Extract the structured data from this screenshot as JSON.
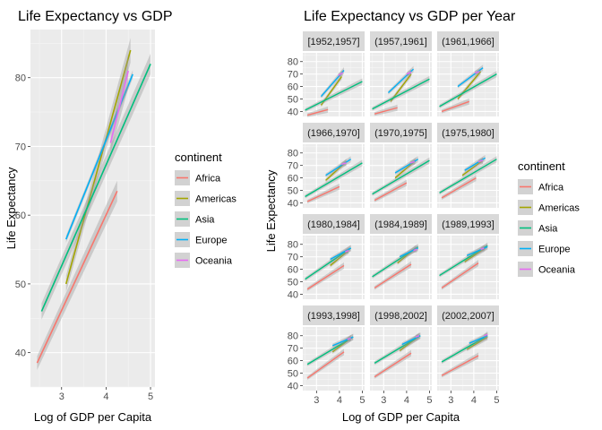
{
  "chart_data": [
    {
      "type": "line",
      "title": "Life Expectancy vs GDP",
      "xlabel": "Log of GDP per Capita",
      "ylabel": "Life Expectancy",
      "xlim": [
        2.3,
        5.1
      ],
      "ylim": [
        35,
        87
      ],
      "xticks": [
        "3",
        "4",
        "5"
      ],
      "yticks": [
        "40",
        "50",
        "60",
        "70",
        "80"
      ],
      "grid": true,
      "series": [
        {
          "name": "Africa",
          "x": [
            2.45,
            4.25
          ],
          "y": [
            38.5,
            63.5
          ],
          "ci": [
            1.0,
            1.5
          ]
        },
        {
          "name": "Americas",
          "x": [
            3.1,
            4.55
          ],
          "y": [
            50,
            84
          ],
          "ci": [
            1.2,
            1.8
          ]
        },
        {
          "name": "Asia",
          "x": [
            2.55,
            5.0
          ],
          "y": [
            46,
            82
          ],
          "ci": [
            1.2,
            1.5
          ]
        },
        {
          "name": "Europe",
          "x": [
            3.1,
            4.6
          ],
          "y": [
            56.5,
            80.5
          ],
          "ci": [
            0.5,
            0.6
          ]
        },
        {
          "name": "Oceania",
          "x": [
            4.1,
            4.5
          ],
          "y": [
            70.5,
            81
          ],
          "ci": [
            1.5,
            2.5
          ]
        }
      ],
      "legend": {
        "title": "continent",
        "position": "right"
      }
    },
    {
      "type": "line",
      "title": "Life Expectancy vs GDP per Year",
      "xlabel": "Log of GDP per Capita",
      "ylabel": "Life Expectancy",
      "xlim": [
        2.4,
        5.1
      ],
      "ylim": [
        36,
        87
      ],
      "xticks": [
        "3",
        "4",
        "5"
      ],
      "facets": [
        {
          "label": "[1952,1957]",
          "yticks": [
            "40",
            "50",
            "60",
            "70",
            "80"
          ],
          "series": {
            "Africa": [
              [
                2.6,
                37
              ],
              [
                3.5,
                41.5
              ]
            ],
            "Americas": [
              [
                3.2,
                45
              ],
              [
                4.1,
                68
              ]
            ],
            "Asia": [
              [
                2.5,
                41
              ],
              [
                5.0,
                64
              ]
            ],
            "Europe": [
              [
                3.2,
                52
              ],
              [
                4.2,
                73
              ]
            ],
            "Oceania": [
              [
                3.95,
                69
              ],
              [
                4.15,
                71
              ]
            ]
          }
        },
        {
          "label": "(1957,1961]",
          "yticks": [
            "40",
            "50",
            "60",
            "70",
            "80"
          ],
          "series": {
            "Africa": [
              [
                2.6,
                38
              ],
              [
                3.6,
                43
              ]
            ],
            "Americas": [
              [
                3.3,
                48
              ],
              [
                4.2,
                70
              ]
            ],
            "Asia": [
              [
                2.5,
                42
              ],
              [
                5.0,
                66
              ]
            ],
            "Europe": [
              [
                3.2,
                55
              ],
              [
                4.3,
                74
              ]
            ],
            "Oceania": [
              [
                4.0,
                70
              ],
              [
                4.2,
                71.5
              ]
            ]
          }
        },
        {
          "label": "(1961,1966]",
          "yticks": [
            "40",
            "50",
            "60",
            "70",
            "80"
          ],
          "series": {
            "Africa": [
              [
                2.6,
                40
              ],
              [
                3.8,
                48
              ]
            ],
            "Americas": [
              [
                3.3,
                50
              ],
              [
                4.3,
                72
              ]
            ],
            "Asia": [
              [
                2.5,
                44
              ],
              [
                5.0,
                70
              ]
            ],
            "Europe": [
              [
                3.3,
                60
              ],
              [
                4.4,
                75
              ]
            ],
            "Oceania": [
              [
                4.05,
                71
              ],
              [
                4.25,
                72
              ]
            ]
          }
        },
        {
          "label": "(1966,1970]",
          "yticks": [
            "40",
            "50",
            "60",
            "70",
            "80"
          ],
          "series": {
            "Africa": [
              [
                2.6,
                41
              ],
              [
                4.0,
                53
              ]
            ],
            "Americas": [
              [
                3.4,
                58
              ],
              [
                4.3,
                73
              ]
            ],
            "Asia": [
              [
                2.5,
                45
              ],
              [
                5.0,
                72
              ]
            ],
            "Europe": [
              [
                3.4,
                62
              ],
              [
                4.5,
                75
              ]
            ],
            "Oceania": [
              [
                4.1,
                71
              ],
              [
                4.3,
                72
              ]
            ]
          }
        },
        {
          "label": "(1970,1975]",
          "yticks": [
            "40",
            "50",
            "60",
            "70",
            "80"
          ],
          "series": {
            "Africa": [
              [
                2.6,
                42
              ],
              [
                4.0,
                56
              ]
            ],
            "Americas": [
              [
                3.5,
                60
              ],
              [
                4.4,
                74
              ]
            ],
            "Asia": [
              [
                2.5,
                47
              ],
              [
                5.0,
                74
              ]
            ],
            "Europe": [
              [
                3.5,
                64
              ],
              [
                4.5,
                75
              ]
            ],
            "Oceania": [
              [
                4.15,
                72
              ],
              [
                4.35,
                73
              ]
            ]
          }
        },
        {
          "label": "(1975,1980]",
          "yticks": [
            "40",
            "50",
            "60",
            "70",
            "80"
          ],
          "series": {
            "Africa": [
              [
                2.6,
                44
              ],
              [
                4.1,
                60
              ]
            ],
            "Americas": [
              [
                3.5,
                62
              ],
              [
                4.4,
                74
              ]
            ],
            "Asia": [
              [
                2.5,
                48
              ],
              [
                5.0,
                75
              ]
            ],
            "Europe": [
              [
                3.6,
                66
              ],
              [
                4.5,
                76
              ]
            ],
            "Oceania": [
              [
                4.2,
                73
              ],
              [
                4.4,
                74
              ]
            ]
          }
        },
        {
          "label": "(1980,1984]",
          "yticks": [
            "40",
            "50",
            "60",
            "70",
            "80"
          ],
          "series": {
            "Africa": [
              [
                2.6,
                44
              ],
              [
                4.2,
                63
              ]
            ],
            "Americas": [
              [
                3.6,
                63
              ],
              [
                4.4,
                75
              ]
            ],
            "Asia": [
              [
                2.5,
                52
              ],
              [
                4.5,
                77
              ]
            ],
            "Europe": [
              [
                3.6,
                68
              ],
              [
                4.5,
                77
              ]
            ],
            "Oceania": [
              [
                4.25,
                74
              ],
              [
                4.4,
                75
              ]
            ]
          }
        },
        {
          "label": "(1984,1989]",
          "yticks": [
            "40",
            "50",
            "60",
            "70",
            "80"
          ],
          "series": {
            "Africa": [
              [
                2.6,
                45
              ],
              [
                4.2,
                64
              ]
            ],
            "Americas": [
              [
                3.6,
                65
              ],
              [
                4.4,
                77
              ]
            ],
            "Asia": [
              [
                2.5,
                54
              ],
              [
                4.5,
                78
              ]
            ],
            "Europe": [
              [
                3.7,
                70
              ],
              [
                4.5,
                77
              ]
            ],
            "Oceania": [
              [
                4.3,
                75
              ],
              [
                4.45,
                76
              ]
            ]
          }
        },
        {
          "label": "(1989,1993]",
          "yticks": [
            "40",
            "50",
            "60",
            "70",
            "80"
          ],
          "series": {
            "Africa": [
              [
                2.6,
                45
              ],
              [
                4.2,
                65
              ]
            ],
            "Americas": [
              [
                3.6,
                66
              ],
              [
                4.5,
                77
              ]
            ],
            "Asia": [
              [
                2.5,
                55
              ],
              [
                4.6,
                79
              ]
            ],
            "Europe": [
              [
                3.7,
                71
              ],
              [
                4.6,
                78
              ]
            ],
            "Oceania": [
              [
                4.3,
                76
              ],
              [
                4.45,
                77
              ]
            ]
          }
        },
        {
          "label": "(1993,1998]",
          "yticks": [
            "40",
            "50",
            "60",
            "70",
            "80"
          ],
          "series": {
            "Africa": [
              [
                2.6,
                46
              ],
              [
                4.2,
                67
              ]
            ],
            "Americas": [
              [
                3.7,
                67
              ],
              [
                4.5,
                78
              ]
            ],
            "Asia": [
              [
                2.6,
                57
              ],
              [
                4.6,
                79
              ]
            ],
            "Europe": [
              [
                3.7,
                72
              ],
              [
                4.6,
                79
              ]
            ],
            "Oceania": [
              [
                4.35,
                77
              ],
              [
                4.5,
                78
              ]
            ]
          }
        },
        {
          "label": "(1998,2002]",
          "yticks": [
            "40",
            "50",
            "60",
            "70",
            "80"
          ],
          "series": {
            "Africa": [
              [
                2.6,
                47
              ],
              [
                4.2,
                66
              ]
            ],
            "Americas": [
              [
                3.7,
                68
              ],
              [
                4.5,
                79
              ]
            ],
            "Asia": [
              [
                2.6,
                58
              ],
              [
                4.6,
                80
              ]
            ],
            "Europe": [
              [
                3.8,
                73
              ],
              [
                4.6,
                80
              ]
            ],
            "Oceania": [
              [
                4.4,
                79
              ],
              [
                4.55,
                80
              ]
            ]
          }
        },
        {
          "label": "(2002,2007]",
          "yticks": [
            "40",
            "50",
            "60",
            "70",
            "80"
          ],
          "series": {
            "Africa": [
              [
                2.6,
                48
              ],
              [
                4.2,
                64
              ]
            ],
            "Americas": [
              [
                3.7,
                69
              ],
              [
                4.6,
                79
              ]
            ],
            "Asia": [
              [
                2.6,
                59
              ],
              [
                4.6,
                80
              ]
            ],
            "Europe": [
              [
                3.8,
                74
              ],
              [
                4.6,
                80
              ]
            ],
            "Oceania": [
              [
                4.45,
                80
              ],
              [
                4.6,
                81
              ]
            ]
          }
        }
      ],
      "legend": {
        "title": "continent",
        "position": "right"
      }
    }
  ],
  "legend": {
    "title": "continent",
    "items": [
      {
        "name": "Africa",
        "color": "#F8766D"
      },
      {
        "name": "Americas",
        "color": "#A3A500"
      },
      {
        "name": "Asia",
        "color": "#00BF7D"
      },
      {
        "name": "Europe",
        "color": "#00B0F6"
      },
      {
        "name": "Oceania",
        "color": "#E76BF3"
      }
    ]
  }
}
